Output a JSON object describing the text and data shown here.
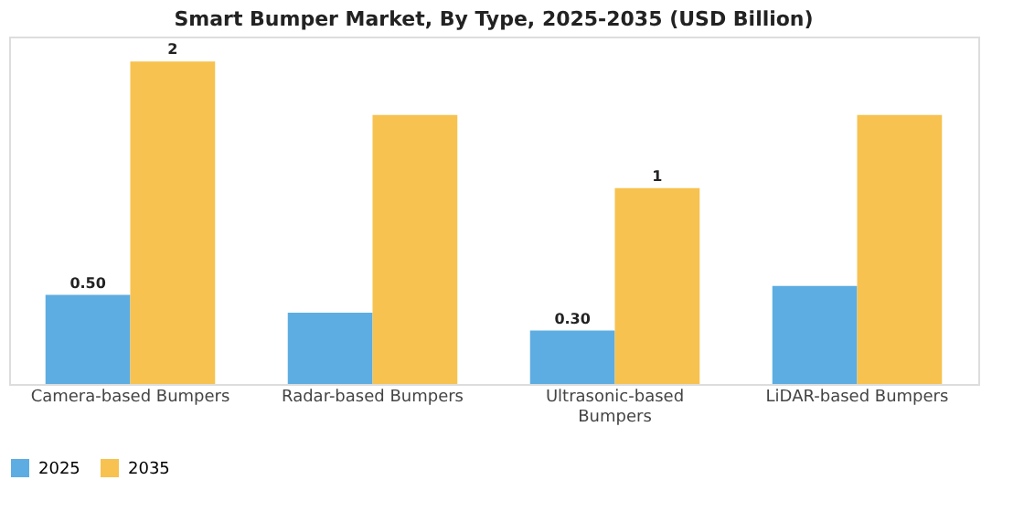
{
  "chart_data": {
    "type": "bar",
    "title": "Smart Bumper Market, By Type, 2025-2035 (USD Billion)",
    "categories": [
      "Camera-based Bumpers",
      "Radar-based Bumpers",
      "Ultrasonic-based Bumpers",
      "LiDAR-based Bumpers"
    ],
    "series": [
      {
        "name": "2025",
        "color": "#5dade2",
        "values": [
          0.5,
          0.4,
          0.3,
          0.55
        ],
        "value_labels": [
          "0.50",
          null,
          "0.30",
          null
        ]
      },
      {
        "name": "2035",
        "color": "#f7c24f",
        "values": [
          1.81,
          1.51,
          1.1,
          1.51
        ],
        "value_labels": [
          "2",
          null,
          "1",
          null
        ]
      }
    ],
    "ylim": [
      0,
      1.95
    ],
    "tick_labels": "x",
    "legend": "bottom"
  }
}
